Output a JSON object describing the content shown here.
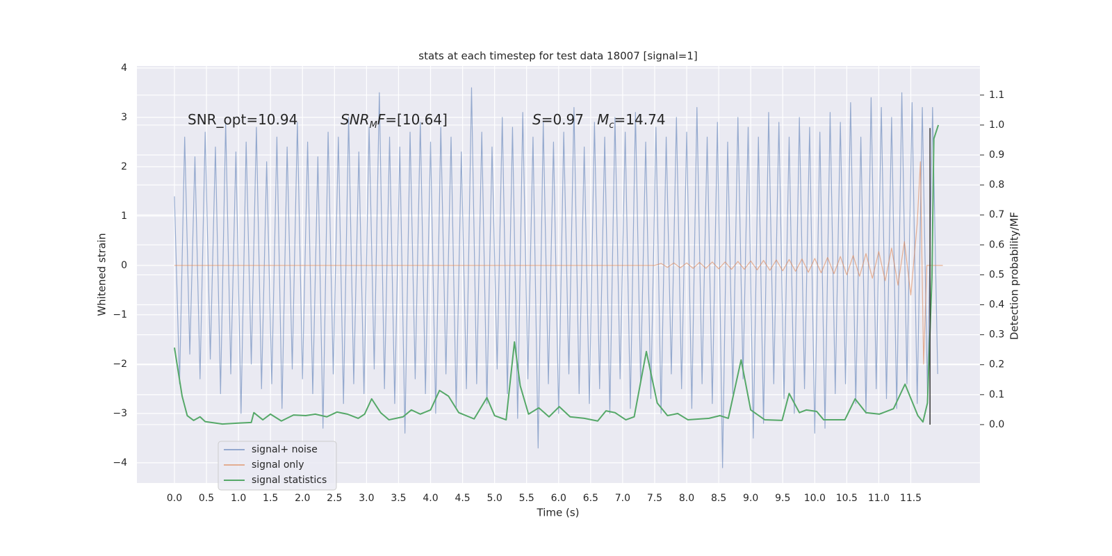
{
  "chart_data": {
    "type": "line",
    "title": "stats at each timestep for test data 18007 [signal=1]",
    "xlabel": "Time (s)",
    "ylabel": "Whitened strain",
    "y2label": "Detection probability/MF",
    "xlim": [
      -0.586,
      12.58
    ],
    "ylim": [
      -4.41,
      4.04
    ],
    "y2lim": [
      -0.195,
      1.197
    ],
    "xticks": [
      {
        "value": 0,
        "label": "0.0"
      },
      0.5,
      {
        "value": 1,
        "label": "1.0"
      },
      1.5,
      {
        "value": 2,
        "label": "2.0"
      },
      2.5,
      {
        "value": 3,
        "label": "3.0"
      },
      3.5,
      {
        "value": 4,
        "label": "4.0"
      },
      4.5,
      {
        "value": 5,
        "label": "5.0"
      },
      5.5,
      {
        "value": 6,
        "label": "6.0"
      },
      6.5,
      {
        "value": 7,
        "label": "7.0"
      },
      7.5,
      {
        "value": 8,
        "label": "8.0"
      },
      8.5,
      {
        "value": 9,
        "label": "9.0"
      },
      9.5,
      {
        "value": 10,
        "label": "10.0"
      },
      10.5,
      {
        "value": 11,
        "label": "11.0"
      },
      11.5
    ],
    "yticks": [
      {
        "value": -4,
        "label": "−4"
      },
      {
        "value": -3,
        "label": "−3"
      },
      {
        "value": -2,
        "label": "−2"
      },
      {
        "value": -1,
        "label": "−1"
      },
      0,
      1,
      2,
      3,
      4
    ],
    "y2ticks": [
      {
        "value": 0,
        "label": "0.0"
      },
      0.1,
      0.2,
      0.3,
      0.4,
      0.5,
      0.6,
      0.7,
      0.8,
      0.9,
      {
        "value": 1,
        "label": "1.0"
      },
      1.1
    ],
    "grid": true,
    "legend": "lower left",
    "series": [
      {
        "name": "signal+ noise",
        "color": "#4c72b0",
        "opacity": 0.55,
        "x": [
          0,
          0.08,
          0.16,
          0.24,
          0.32,
          0.4,
          0.48,
          0.56,
          0.64,
          0.72,
          0.8,
          0.88,
          0.96,
          1.04,
          1.12,
          1.2,
          1.28,
          1.36,
          1.44,
          1.52,
          1.6,
          1.68,
          1.76,
          1.84,
          1.92,
          2,
          2.08,
          2.16,
          2.24,
          2.32,
          2.4,
          2.48,
          2.56,
          2.64,
          2.72,
          2.8,
          2.88,
          2.96,
          3.04,
          3.12,
          3.2,
          3.28,
          3.36,
          3.44,
          3.52,
          3.6,
          3.68,
          3.76,
          3.84,
          3.92,
          4,
          4.08,
          4.16,
          4.24,
          4.32,
          4.4,
          4.48,
          4.56,
          4.64,
          4.72,
          4.8,
          4.88,
          4.96,
          5.04,
          5.12,
          5.2,
          5.28,
          5.36,
          5.44,
          5.52,
          5.6,
          5.68,
          5.76,
          5.84,
          5.92,
          6,
          6.08,
          6.16,
          6.24,
          6.32,
          6.4,
          6.48,
          6.56,
          6.64,
          6.72,
          6.8,
          6.88,
          6.96,
          7.04,
          7.12,
          7.2,
          7.28,
          7.36,
          7.44,
          7.52,
          7.6,
          7.68,
          7.76,
          7.84,
          7.92,
          8,
          8.08,
          8.16,
          8.24,
          8.32,
          8.4,
          8.48,
          8.56,
          8.64,
          8.72,
          8.8,
          8.88,
          8.96,
          9.04,
          9.12,
          9.2,
          9.28,
          9.36,
          9.44,
          9.52,
          9.6,
          9.68,
          9.76,
          9.84,
          9.92,
          10,
          10.08,
          10.16,
          10.24,
          10.32,
          10.4,
          10.48,
          10.56,
          10.64,
          10.72,
          10.8,
          10.88,
          10.96,
          11.04,
          11.12,
          11.2,
          11.28,
          11.36,
          11.44,
          11.52,
          11.6,
          11.68,
          11.76,
          11.84,
          11.92
        ],
        "values": [
          1.4,
          -2.4,
          2.6,
          -1.8,
          2.2,
          -2.3,
          2.7,
          -1.9,
          2.4,
          -2.6,
          2.9,
          -2.2,
          2.3,
          -3.0,
          2.5,
          -2.0,
          2.8,
          -2.5,
          2.1,
          -2.4,
          2.6,
          -2.9,
          2.4,
          -2.1,
          2.9,
          -2.3,
          2.5,
          -2.6,
          2.2,
          -3.3,
          2.7,
          -2.2,
          2.6,
          -2.8,
          3.0,
          -2.4,
          2.3,
          -2.6,
          2.8,
          -2.1,
          3.5,
          -2.5,
          2.6,
          -2.8,
          2.4,
          -3.4,
          2.7,
          -2.3,
          2.9,
          -2.6,
          2.5,
          -3.0,
          2.8,
          -2.2,
          2.6,
          -2.9,
          2.3,
          -2.5,
          3.6,
          -2.4,
          2.7,
          -2.8,
          2.4,
          -2.1,
          3.0,
          -2.6,
          2.8,
          -3.1,
          3.1,
          -2.3,
          2.6,
          -3.7,
          2.9,
          -2.4,
          2.5,
          -3.0,
          2.7,
          -2.2,
          3.2,
          -2.6,
          2.4,
          -2.8,
          2.9,
          -2.5,
          2.6,
          -3.0,
          3.0,
          -2.3,
          2.7,
          -2.9,
          3.1,
          -2.4,
          2.5,
          -2.7,
          2.8,
          -3.0,
          2.6,
          -2.2,
          3.0,
          -2.5,
          2.7,
          -2.9,
          3.2,
          -2.4,
          2.6,
          -2.8,
          2.9,
          -4.1,
          2.5,
          -2.6,
          3.0,
          -2.3,
          2.8,
          -3.5,
          2.6,
          -3.2,
          3.1,
          -2.4,
          2.9,
          -2.7,
          2.6,
          -3.0,
          3.0,
          -2.5,
          2.8,
          -3.4,
          2.7,
          -3.3,
          3.1,
          -2.6,
          2.9,
          -2.4,
          3.3,
          -2.8,
          2.6,
          -3.0,
          3.4,
          -2.5,
          3.2,
          -2.7,
          3.0,
          -2.9,
          3.5,
          -2.4,
          3.3,
          -2.8,
          3.2,
          -2.6,
          3.2,
          -2.2
        ]
      },
      {
        "name": "signal only",
        "color": "#dd8452",
        "opacity": 0.6,
        "x": [
          0,
          7.5,
          7.6,
          7.7,
          7.8,
          7.9,
          8.0,
          8.1,
          8.2,
          8.3,
          8.4,
          8.5,
          8.6,
          8.7,
          8.8,
          8.9,
          9.0,
          9.1,
          9.2,
          9.3,
          9.4,
          9.5,
          9.6,
          9.7,
          9.8,
          9.9,
          10.0,
          10.1,
          10.2,
          10.3,
          10.4,
          10.5,
          10.6,
          10.7,
          10.8,
          10.9,
          11.0,
          11.1,
          11.2,
          11.3,
          11.4,
          11.5,
          11.6,
          11.65,
          11.7,
          11.75,
          12.0
        ],
        "values": [
          0,
          0,
          0.04,
          -0.04,
          0.05,
          -0.05,
          0.05,
          -0.06,
          0.06,
          -0.06,
          0.07,
          -0.07,
          0.07,
          -0.08,
          0.08,
          -0.08,
          0.09,
          -0.09,
          0.1,
          -0.1,
          0.11,
          -0.11,
          0.12,
          -0.12,
          0.13,
          -0.14,
          0.14,
          -0.15,
          0.16,
          -0.17,
          0.18,
          -0.19,
          0.2,
          -0.22,
          0.24,
          -0.26,
          0.28,
          -0.31,
          0.35,
          -0.4,
          0.48,
          -0.6,
          0.85,
          2.1,
          -2.0,
          0,
          0
        ]
      },
      {
        "name": "signal statistics",
        "color": "#55a868",
        "opacity": 1,
        "axis": "y2",
        "x": [
          0,
          0.12,
          0.2,
          0.3,
          0.4,
          0.48,
          0.75,
          1.0,
          1.2,
          1.24,
          1.38,
          1.5,
          1.67,
          1.86,
          2.05,
          2.2,
          2.38,
          2.54,
          2.7,
          2.87,
          2.97,
          3.08,
          3.22,
          3.35,
          3.57,
          3.7,
          3.84,
          4.0,
          4.14,
          4.28,
          4.44,
          4.68,
          4.88,
          5.0,
          5.18,
          5.31,
          5.4,
          5.53,
          5.69,
          5.85,
          6.01,
          6.18,
          6.4,
          6.61,
          6.74,
          6.88,
          7.05,
          7.18,
          7.37,
          7.54,
          7.7,
          7.86,
          8.02,
          8.35,
          8.52,
          8.65,
          8.85,
          9.0,
          9.22,
          9.49,
          9.6,
          9.76,
          9.87,
          10.03,
          10.14,
          10.47,
          10.63,
          10.8,
          11.01,
          11.23,
          11.41,
          11.61,
          11.69,
          11.76,
          11.83,
          11.86,
          11.93
        ],
        "values": [
          0.257,
          0.095,
          0.03,
          0.014,
          0.026,
          0.01,
          0.002,
          0.005,
          0.007,
          0.04,
          0.016,
          0.035,
          0.012,
          0.032,
          0.03,
          0.035,
          0.026,
          0.042,
          0.035,
          0.021,
          0.035,
          0.086,
          0.04,
          0.016,
          0.026,
          0.049,
          0.035,
          0.049,
          0.114,
          0.095,
          0.04,
          0.019,
          0.09,
          0.03,
          0.016,
          0.276,
          0.13,
          0.035,
          0.056,
          0.026,
          0.06,
          0.026,
          0.021,
          0.012,
          0.046,
          0.04,
          0.016,
          0.026,
          0.244,
          0.072,
          0.03,
          0.037,
          0.016,
          0.021,
          0.03,
          0.021,
          0.216,
          0.049,
          0.016,
          0.014,
          0.104,
          0.04,
          0.049,
          0.044,
          0.016,
          0.016,
          0.086,
          0.04,
          0.035,
          0.053,
          0.135,
          0.03,
          0.009,
          0.072,
          0.49,
          0.954,
          1.0
        ]
      }
    ],
    "merger_line": {
      "x": 11.8,
      "y2": [
        0,
        0.99
      ],
      "color": "#333333"
    },
    "annotations": [
      {
        "parts": [
          {
            "t": "SNR_opt=10.94",
            "style": "normal"
          }
        ]
      },
      {
        "parts": [
          {
            "t": "SNR",
            "style": "italic"
          },
          {
            "t": "M",
            "style": "sub"
          },
          {
            "t": "F",
            "style": "italic"
          },
          {
            "t": "=[10.64]",
            "style": "normal"
          }
        ]
      },
      {
        "parts": [
          {
            "t": "S",
            "style": "italic"
          },
          {
            "t": "=0.97   ",
            "style": "normal"
          },
          {
            "t": "M",
            "style": "italic"
          },
          {
            "t": "c",
            "style": "sub"
          },
          {
            "t": "=14.74",
            "style": "normal"
          }
        ]
      }
    ]
  }
}
